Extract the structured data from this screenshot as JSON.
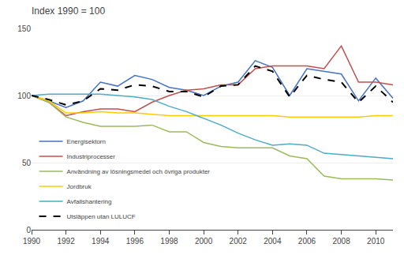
{
  "chart_data": {
    "type": "line",
    "title": "Index 1990 = 100",
    "x": [
      1990,
      1991,
      1992,
      1993,
      1994,
      1995,
      1996,
      1997,
      1998,
      1999,
      2000,
      2001,
      2002,
      2003,
      2004,
      2005,
      2006,
      2007,
      2008,
      2009,
      2010,
      2011
    ],
    "series": [
      {
        "name": "Energisektorn",
        "color": "#4472C4",
        "line_style": "solid",
        "values": [
          100,
          96,
          91,
          96,
          110,
          107,
          115,
          112,
          106,
          104,
          100,
          107,
          110,
          126,
          121,
          100,
          120,
          118,
          116,
          96,
          113,
          98
        ]
      },
      {
        "name": "Industriprocesser",
        "color": "#C0504D",
        "line_style": "solid",
        "values": [
          100,
          95,
          85,
          88,
          90,
          90,
          88,
          95,
          100,
          104,
          105,
          108,
          108,
          120,
          122,
          122,
          122,
          120,
          137,
          110,
          110,
          108
        ]
      },
      {
        "name": "Användning av lösningsmedel och övriga produkter",
        "color": "#9BBB59",
        "line_style": "solid",
        "values": [
          100,
          95,
          84,
          80,
          77,
          77,
          77,
          78,
          73,
          73,
          65,
          62,
          61,
          61,
          61,
          55,
          53,
          40,
          38,
          38,
          38,
          37
        ]
      },
      {
        "name": "Jordbruk",
        "color": "#FFCC00",
        "line_style": "solid",
        "values": [
          100,
          96,
          87,
          87,
          88,
          87,
          87,
          86,
          85,
          85,
          85,
          85,
          85,
          85,
          85,
          84,
          84,
          84,
          84,
          84,
          85,
          85
        ]
      },
      {
        "name": "Avfallshantering",
        "color": "#4BACC6",
        "line_style": "solid",
        "values": [
          100,
          101,
          101,
          101,
          101,
          100,
          99,
          97,
          92,
          88,
          83,
          78,
          72,
          67,
          63,
          64,
          63,
          57,
          56,
          55,
          54,
          53
        ]
      },
      {
        "name": "Utsläppen utan LULUCF",
        "color": "#000000",
        "line_style": "dashed",
        "values": [
          100,
          97,
          93,
          96,
          105,
          104,
          108,
          107,
          103,
          103,
          99,
          107,
          108,
          122,
          118,
          99,
          115,
          112,
          110,
          95,
          107,
          95
        ]
      }
    ],
    "xlim": [
      1990,
      2011
    ],
    "xticks": [
      1990,
      1992,
      1994,
      1996,
      1998,
      2000,
      2002,
      2004,
      2006,
      2008,
      2010
    ],
    "ylim": [
      0,
      150
    ],
    "yticks": [
      0,
      50,
      100,
      150
    ],
    "grid": "y",
    "legend": "lower left"
  }
}
